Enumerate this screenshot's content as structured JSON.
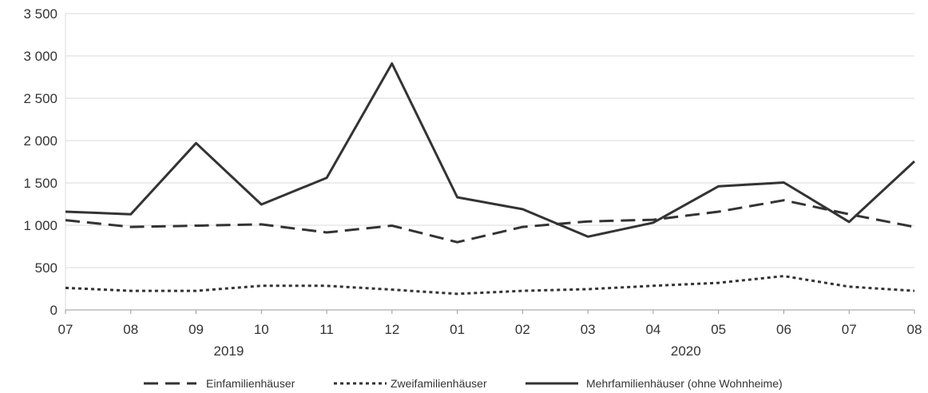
{
  "chart_data": {
    "type": "line",
    "title": "",
    "xlabel": "",
    "ylabel": "",
    "categories": [
      "07",
      "08",
      "09",
      "10",
      "11",
      "12",
      "01",
      "02",
      "03",
      "04",
      "05",
      "06",
      "07",
      "08"
    ],
    "year_labels": [
      {
        "label": "2019",
        "start_index": 0,
        "end_index": 5
      },
      {
        "label": "2020",
        "start_index": 6,
        "end_index": 13
      }
    ],
    "ylim": [
      0,
      3500
    ],
    "yticks": [
      0,
      500,
      1000,
      1500,
      2000,
      2500,
      3000,
      3500
    ],
    "ytick_labels": [
      "0",
      "500",
      "1 000",
      "1 500",
      "2 000",
      "2 500",
      "3 000",
      "3 500"
    ],
    "grid": true,
    "legend_position": "bottom",
    "series": [
      {
        "name": "Einfamilienhäuser",
        "dash": "long-dash",
        "color": "#333333",
        "values": [
          1060,
          980,
          995,
          1010,
          915,
          995,
          800,
          980,
          1045,
          1065,
          1160,
          1295,
          1130,
          980
        ]
      },
      {
        "name": "Zweifamilienhäuser",
        "dash": "short-dash",
        "color": "#333333",
        "values": [
          260,
          225,
          225,
          285,
          285,
          240,
          190,
          225,
          245,
          285,
          320,
          400,
          275,
          225
        ]
      },
      {
        "name": "Mehrfamilienhäuser (ohne Wohnheime)",
        "dash": "solid",
        "color": "#333333",
        "values": [
          1160,
          1130,
          1970,
          1245,
          1560,
          2910,
          1330,
          1190,
          865,
          1030,
          1460,
          1505,
          1040,
          1755
        ]
      }
    ]
  }
}
